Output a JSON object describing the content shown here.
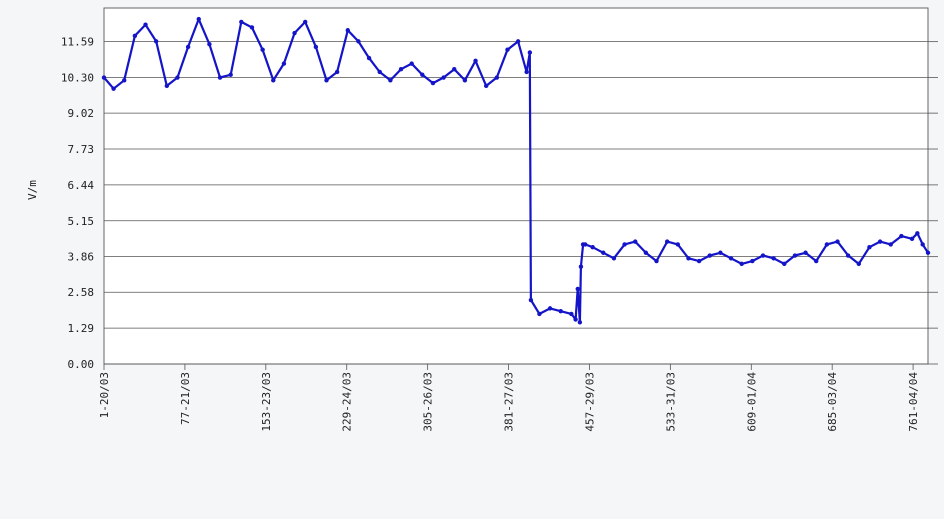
{
  "chart_data": {
    "type": "line",
    "ylabel": "V/m",
    "ylim": [
      0,
      12.8
    ],
    "y_ticks": [
      "0.00",
      "1.29",
      "2.58",
      "3.86",
      "5.15",
      "6.44",
      "7.73",
      "9.02",
      "10.30",
      "11.59"
    ],
    "y_tick_values": [
      0,
      1.29,
      2.58,
      3.86,
      5.15,
      6.44,
      7.73,
      9.02,
      10.3,
      11.59
    ],
    "x_ticks": [
      "1-20/03",
      "77-21/03",
      "153-23/03",
      "229-24/03",
      "305-26/03",
      "381-27/03",
      "457-29/03",
      "533-31/03",
      "609-01/04",
      "685-03/04",
      "761-04/04"
    ],
    "x_tick_values": [
      1,
      77,
      153,
      229,
      305,
      381,
      457,
      533,
      609,
      685,
      761
    ],
    "xlim": [
      1,
      775
    ],
    "grid": "horizontal",
    "series": [
      {
        "color": "#1414c8",
        "x": [
          1,
          10,
          20,
          30,
          40,
          50,
          60,
          70,
          80,
          90,
          100,
          110,
          120,
          130,
          140,
          150,
          160,
          170,
          180,
          190,
          200,
          210,
          220,
          230,
          240,
          250,
          260,
          270,
          280,
          290,
          300,
          310,
          320,
          330,
          340,
          350,
          360,
          370,
          380,
          390,
          398,
          401,
          402,
          410,
          420,
          430,
          440,
          444,
          446,
          448,
          449,
          451,
          453,
          460,
          470,
          480,
          490,
          500,
          510,
          520,
          530,
          540,
          550,
          560,
          570,
          580,
          590,
          600,
          610,
          620,
          630,
          640,
          650,
          660,
          670,
          680,
          690,
          700,
          710,
          720,
          730,
          740,
          750,
          760,
          765,
          770,
          775
        ],
        "y": [
          10.3,
          9.9,
          10.2,
          11.8,
          12.2,
          11.6,
          10.0,
          10.3,
          11.4,
          12.4,
          11.5,
          10.3,
          10.4,
          12.3,
          12.1,
          11.3,
          10.2,
          10.8,
          11.9,
          12.3,
          11.4,
          10.2,
          10.5,
          12.0,
          11.6,
          11.0,
          10.5,
          10.2,
          10.6,
          10.8,
          10.4,
          10.1,
          10.3,
          10.6,
          10.2,
          10.9,
          10.0,
          10.3,
          11.3,
          11.6,
          10.5,
          11.2,
          2.3,
          1.8,
          2.0,
          1.9,
          1.8,
          1.6,
          2.7,
          1.5,
          3.5,
          4.3,
          4.3,
          4.2,
          4.0,
          3.8,
          4.3,
          4.4,
          4.0,
          3.7,
          4.4,
          4.3,
          3.8,
          3.7,
          3.9,
          4.0,
          3.8,
          3.6,
          3.7,
          3.9,
          3.8,
          3.6,
          3.9,
          4.0,
          3.7,
          4.3,
          4.4,
          3.9,
          3.6,
          4.2,
          4.4,
          4.3,
          4.6,
          4.5,
          4.7,
          4.3,
          4.0
        ]
      }
    ]
  }
}
